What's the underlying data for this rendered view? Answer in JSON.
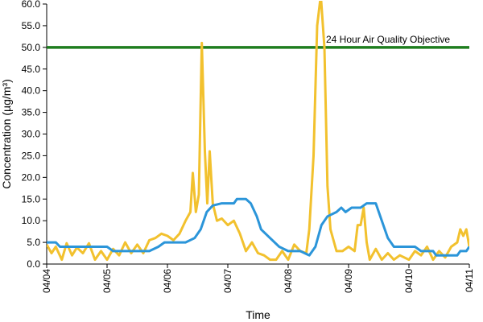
{
  "chart_data": {
    "type": "line",
    "title": "",
    "xlabel": "Time",
    "ylabel": "Concentration (µg/m³)",
    "ylim": [
      0,
      60
    ],
    "xlim": [
      0,
      7
    ],
    "y_ticks": [
      "0.0",
      "5.0",
      "10.0",
      "15.0",
      "20.0",
      "25.0",
      "30.0",
      "35.0",
      "40.0",
      "45.0",
      "50.0",
      "55.0",
      "60.0"
    ],
    "x_ticks": [
      "04/04",
      "04/05",
      "04/06",
      "04/07",
      "04/08",
      "04/09",
      "04/10",
      "04/11"
    ],
    "grid": false,
    "legend": "none",
    "reference_line": {
      "label": "24 Hour Air Quality Objective",
      "y": 50,
      "color": "#1e7d1e"
    },
    "series": [
      {
        "color": "#f2c12e",
        "points": [
          [
            0.0,
            4.5
          ],
          [
            0.08,
            2.5
          ],
          [
            0.15,
            4.0
          ],
          [
            0.25,
            1.0
          ],
          [
            0.33,
            4.8
          ],
          [
            0.42,
            2.0
          ],
          [
            0.5,
            3.8
          ],
          [
            0.6,
            2.5
          ],
          [
            0.7,
            4.8
          ],
          [
            0.8,
            1.0
          ],
          [
            0.9,
            3.0
          ],
          [
            1.0,
            1.0
          ],
          [
            1.1,
            3.5
          ],
          [
            1.2,
            2.0
          ],
          [
            1.3,
            5.0
          ],
          [
            1.4,
            2.5
          ],
          [
            1.5,
            4.5
          ],
          [
            1.6,
            2.5
          ],
          [
            1.7,
            5.5
          ],
          [
            1.8,
            6.0
          ],
          [
            1.9,
            7.0
          ],
          [
            2.0,
            6.5
          ],
          [
            2.1,
            5.5
          ],
          [
            2.2,
            7.0
          ],
          [
            2.3,
            10.0
          ],
          [
            2.38,
            12.0
          ],
          [
            2.42,
            21.0
          ],
          [
            2.47,
            12.0
          ],
          [
            2.52,
            16.0
          ],
          [
            2.57,
            51.0
          ],
          [
            2.62,
            26.0
          ],
          [
            2.66,
            14.0
          ],
          [
            2.7,
            26.0
          ],
          [
            2.75,
            14.0
          ],
          [
            2.82,
            10.0
          ],
          [
            2.9,
            10.5
          ],
          [
            3.0,
            9.0
          ],
          [
            3.1,
            10.0
          ],
          [
            3.2,
            7.0
          ],
          [
            3.3,
            3.0
          ],
          [
            3.4,
            5.0
          ],
          [
            3.5,
            2.5
          ],
          [
            3.6,
            2.0
          ],
          [
            3.7,
            1.0
          ],
          [
            3.8,
            1.0
          ],
          [
            3.9,
            3.0
          ],
          [
            4.0,
            1.0
          ],
          [
            4.1,
            4.5
          ],
          [
            4.2,
            3.0
          ],
          [
            4.3,
            2.5
          ],
          [
            4.35,
            8.0
          ],
          [
            4.42,
            25.0
          ],
          [
            4.48,
            55.0
          ],
          [
            4.54,
            62.0
          ],
          [
            4.6,
            50.0
          ],
          [
            4.65,
            18.0
          ],
          [
            4.7,
            8.0
          ],
          [
            4.8,
            3.0
          ],
          [
            4.9,
            3.0
          ],
          [
            5.0,
            4.0
          ],
          [
            5.1,
            3.0
          ],
          [
            5.15,
            9.0
          ],
          [
            5.2,
            9.0
          ],
          [
            5.25,
            13.0
          ],
          [
            5.3,
            5.0
          ],
          [
            5.35,
            1.0
          ],
          [
            5.45,
            3.5
          ],
          [
            5.55,
            1.0
          ],
          [
            5.65,
            2.5
          ],
          [
            5.75,
            1.0
          ],
          [
            5.85,
            2.0
          ],
          [
            6.0,
            1.0
          ],
          [
            6.1,
            3.0
          ],
          [
            6.2,
            2.0
          ],
          [
            6.3,
            4.0
          ],
          [
            6.4,
            1.0
          ],
          [
            6.5,
            3.0
          ],
          [
            6.6,
            1.5
          ],
          [
            6.7,
            4.0
          ],
          [
            6.8,
            5.0
          ],
          [
            6.85,
            8.0
          ],
          [
            6.9,
            6.5
          ],
          [
            6.95,
            8.0
          ],
          [
            7.0,
            4.0
          ]
        ]
      },
      {
        "color": "#2b95d9",
        "points": [
          [
            0.0,
            5.0
          ],
          [
            0.15,
            5.0
          ],
          [
            0.22,
            4.0
          ],
          [
            1.0,
            4.0
          ],
          [
            1.1,
            3.0
          ],
          [
            1.7,
            3.0
          ],
          [
            1.85,
            4.0
          ],
          [
            1.95,
            5.0
          ],
          [
            2.3,
            5.0
          ],
          [
            2.45,
            6.0
          ],
          [
            2.55,
            8.0
          ],
          [
            2.65,
            12.0
          ],
          [
            2.75,
            13.5
          ],
          [
            2.9,
            14.0
          ],
          [
            3.1,
            14.0
          ],
          [
            3.15,
            15.0
          ],
          [
            3.3,
            15.0
          ],
          [
            3.38,
            14.0
          ],
          [
            3.48,
            11.0
          ],
          [
            3.55,
            8.0
          ],
          [
            3.7,
            6.0
          ],
          [
            3.85,
            4.0
          ],
          [
            4.0,
            3.0
          ],
          [
            4.2,
            3.0
          ],
          [
            4.35,
            2.0
          ],
          [
            4.45,
            4.0
          ],
          [
            4.55,
            9.0
          ],
          [
            4.65,
            11.0
          ],
          [
            4.8,
            12.0
          ],
          [
            4.88,
            13.0
          ],
          [
            4.95,
            12.0
          ],
          [
            5.05,
            13.0
          ],
          [
            5.2,
            13.0
          ],
          [
            5.3,
            14.0
          ],
          [
            5.45,
            14.0
          ],
          [
            5.55,
            10.0
          ],
          [
            5.65,
            6.0
          ],
          [
            5.75,
            4.0
          ],
          [
            6.1,
            4.0
          ],
          [
            6.2,
            3.0
          ],
          [
            6.4,
            3.0
          ],
          [
            6.45,
            2.0
          ],
          [
            6.8,
            2.0
          ],
          [
            6.85,
            3.0
          ],
          [
            6.95,
            3.0
          ],
          [
            7.0,
            4.0
          ]
        ]
      }
    ]
  }
}
